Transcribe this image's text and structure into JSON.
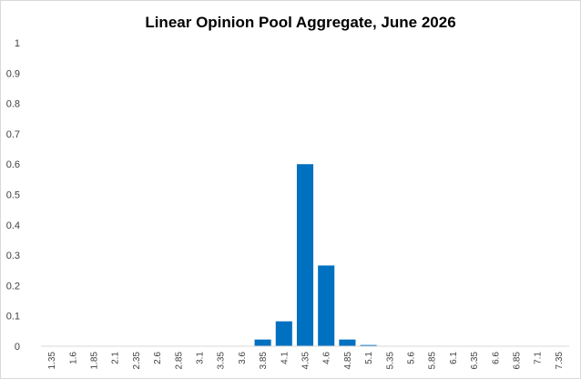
{
  "chart_data": {
    "type": "bar",
    "title": "Linear Opinion Pool Aggregate,  June 2026",
    "xlabel": "",
    "ylabel": "",
    "ylim": [
      0,
      1
    ],
    "yticks": [
      "0",
      "0.1",
      "0.2",
      "0.3",
      "0.4",
      "0.5",
      "0.6",
      "0.7",
      "0.8",
      "0.9",
      "1"
    ],
    "grid": false,
    "legend": "none",
    "bar_color": "#0070C0",
    "categories": [
      "1.35",
      "1.6",
      "1.85",
      "2.1",
      "2.35",
      "2.6",
      "2.85",
      "3.1",
      "3.35",
      "3.6",
      "3.85",
      "4.1",
      "4.35",
      "4.6",
      "4.85",
      "5.1",
      "5.35",
      "5.6",
      "5.85",
      "6.1",
      "6.35",
      "6.6",
      "6.85",
      "7.1",
      "7.35"
    ],
    "values": [
      0,
      0,
      0,
      0,
      0,
      0,
      0,
      0,
      0,
      0,
      0.022,
      0.082,
      0.6,
      0.266,
      0.022,
      0.004,
      0,
      0,
      0,
      0,
      0,
      0,
      0,
      0,
      0
    ]
  }
}
